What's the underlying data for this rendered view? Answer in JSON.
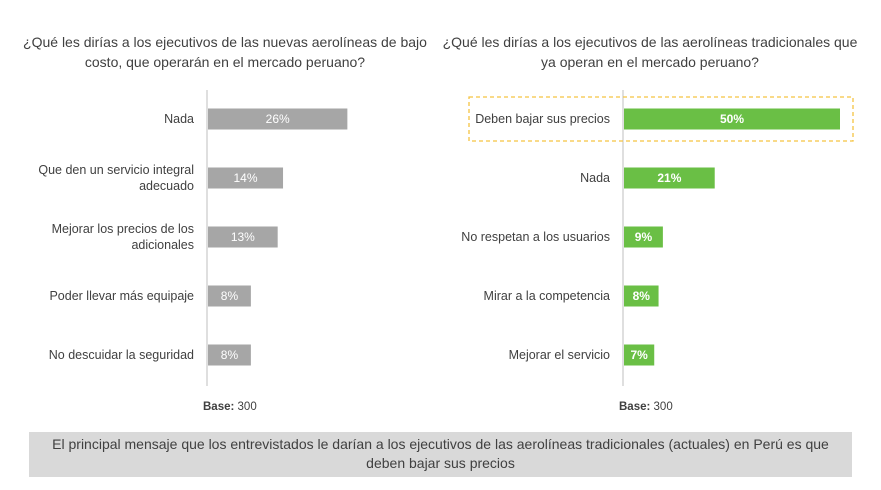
{
  "chart_data": [
    {
      "type": "bar",
      "orientation": "horizontal",
      "title": "¿Qué les dirías a los ejecutivos de las nuevas aerolíneas de bajo costo, que operarán en el mercado peruano?",
      "categories": [
        "Nada",
        "Que den un servicio integral adecuado",
        "Mejorar los precios de los adicionales",
        "Poder llevar más equipaje",
        "No descuidar la seguridad"
      ],
      "values": [
        26,
        14,
        13,
        8,
        8
      ],
      "value_labels": [
        "26%",
        "14%",
        "13%",
        "8%",
        "8%"
      ],
      "unit": "%",
      "xlim": [
        0,
        50
      ],
      "bar_color": "#a6a6a6",
      "base_label": "Base:",
      "base_value": "300"
    },
    {
      "type": "bar",
      "orientation": "horizontal",
      "title": "¿Qué les dirías a los ejecutivos de las aerolíneas tradicionales que ya operan en el mercado peruano?",
      "categories": [
        "Deben bajar sus precios",
        "Nada",
        "No respetan a los usuarios",
        "Mirar a la competencia",
        "Mejorar el servicio"
      ],
      "values": [
        50,
        21,
        9,
        8,
        7
      ],
      "value_labels": [
        "50%",
        "21%",
        "9%",
        "8%",
        "7%"
      ],
      "unit": "%",
      "xlim": [
        0,
        50
      ],
      "bar_color": "#6abf45",
      "highlight_color": "#f5c342",
      "highlight_index": 0,
      "base_label": "Base:",
      "base_value": "300"
    }
  ],
  "footer": {
    "text": "El principal mensaje que los entrevistados le darían a los ejecutivos de las aerolíneas tradicionales (actuales) en Perú es que deben bajar sus precios"
  }
}
